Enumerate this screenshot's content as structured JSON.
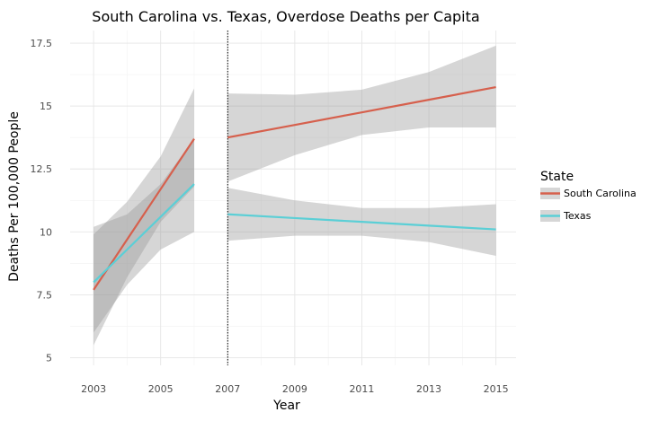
{
  "chart_data": {
    "type": "line",
    "title": "South Carolina vs. Texas, Overdose Deaths per Capita",
    "xlabel": "Year",
    "ylabel": "Deaths Per 100,000 People",
    "xlim": [
      2002.3,
      2015.6
    ],
    "ylim": [
      4.7,
      18.0
    ],
    "x_ticks": [
      2003,
      2005,
      2007,
      2009,
      2011,
      2013,
      2015
    ],
    "x_tick_labels": [
      "2003",
      "2005",
      "2007",
      "2009",
      "2011",
      "2013",
      "2015"
    ],
    "y_ticks": [
      5,
      7.5,
      10,
      12.5,
      15,
      17.5
    ],
    "y_tick_labels": [
      "5",
      "7.5",
      "10",
      "12.5",
      "15",
      "17.5"
    ],
    "vline": {
      "x": 2007,
      "style": "dotted"
    },
    "grid": true,
    "legend": {
      "title": "State",
      "position": "right"
    },
    "series": [
      {
        "name": "South Carolina",
        "color": "#d6604d",
        "segments": [
          {
            "x": [
              2003,
              2004,
              2005,
              2006
            ],
            "y": [
              7.7,
              9.7,
              11.7,
              13.7
            ],
            "ci_lower": [
              5.5,
              8.2,
              10.4,
              11.8
            ],
            "ci_upper": [
              9.9,
              11.2,
              13.0,
              15.7
            ]
          },
          {
            "x": [
              2007,
              2009,
              2011,
              2013,
              2015
            ],
            "y": [
              13.75,
              14.25,
              14.75,
              15.25,
              15.75
            ],
            "ci_lower": [
              12.0,
              13.05,
              13.85,
              14.15,
              14.15
            ],
            "ci_upper": [
              15.5,
              15.45,
              15.65,
              16.35,
              17.4
            ]
          }
        ]
      },
      {
        "name": "Texas",
        "color": "#5bcfd6",
        "segments": [
          {
            "x": [
              2003,
              2004,
              2005,
              2006
            ],
            "y": [
              8.0,
              9.3,
              10.6,
              11.9
            ],
            "ci_lower": [
              6.0,
              7.9,
              9.3,
              10.0
            ],
            "ci_upper": [
              10.2,
              10.7,
              11.9,
              13.7
            ]
          },
          {
            "x": [
              2007,
              2009,
              2011,
              2013,
              2015
            ],
            "y": [
              10.7,
              10.55,
              10.4,
              10.25,
              10.1
            ],
            "ci_lower": [
              9.65,
              9.85,
              9.85,
              9.6,
              9.05
            ],
            "ci_upper": [
              11.75,
              11.25,
              10.95,
              10.95,
              11.1
            ]
          }
        ]
      }
    ]
  }
}
